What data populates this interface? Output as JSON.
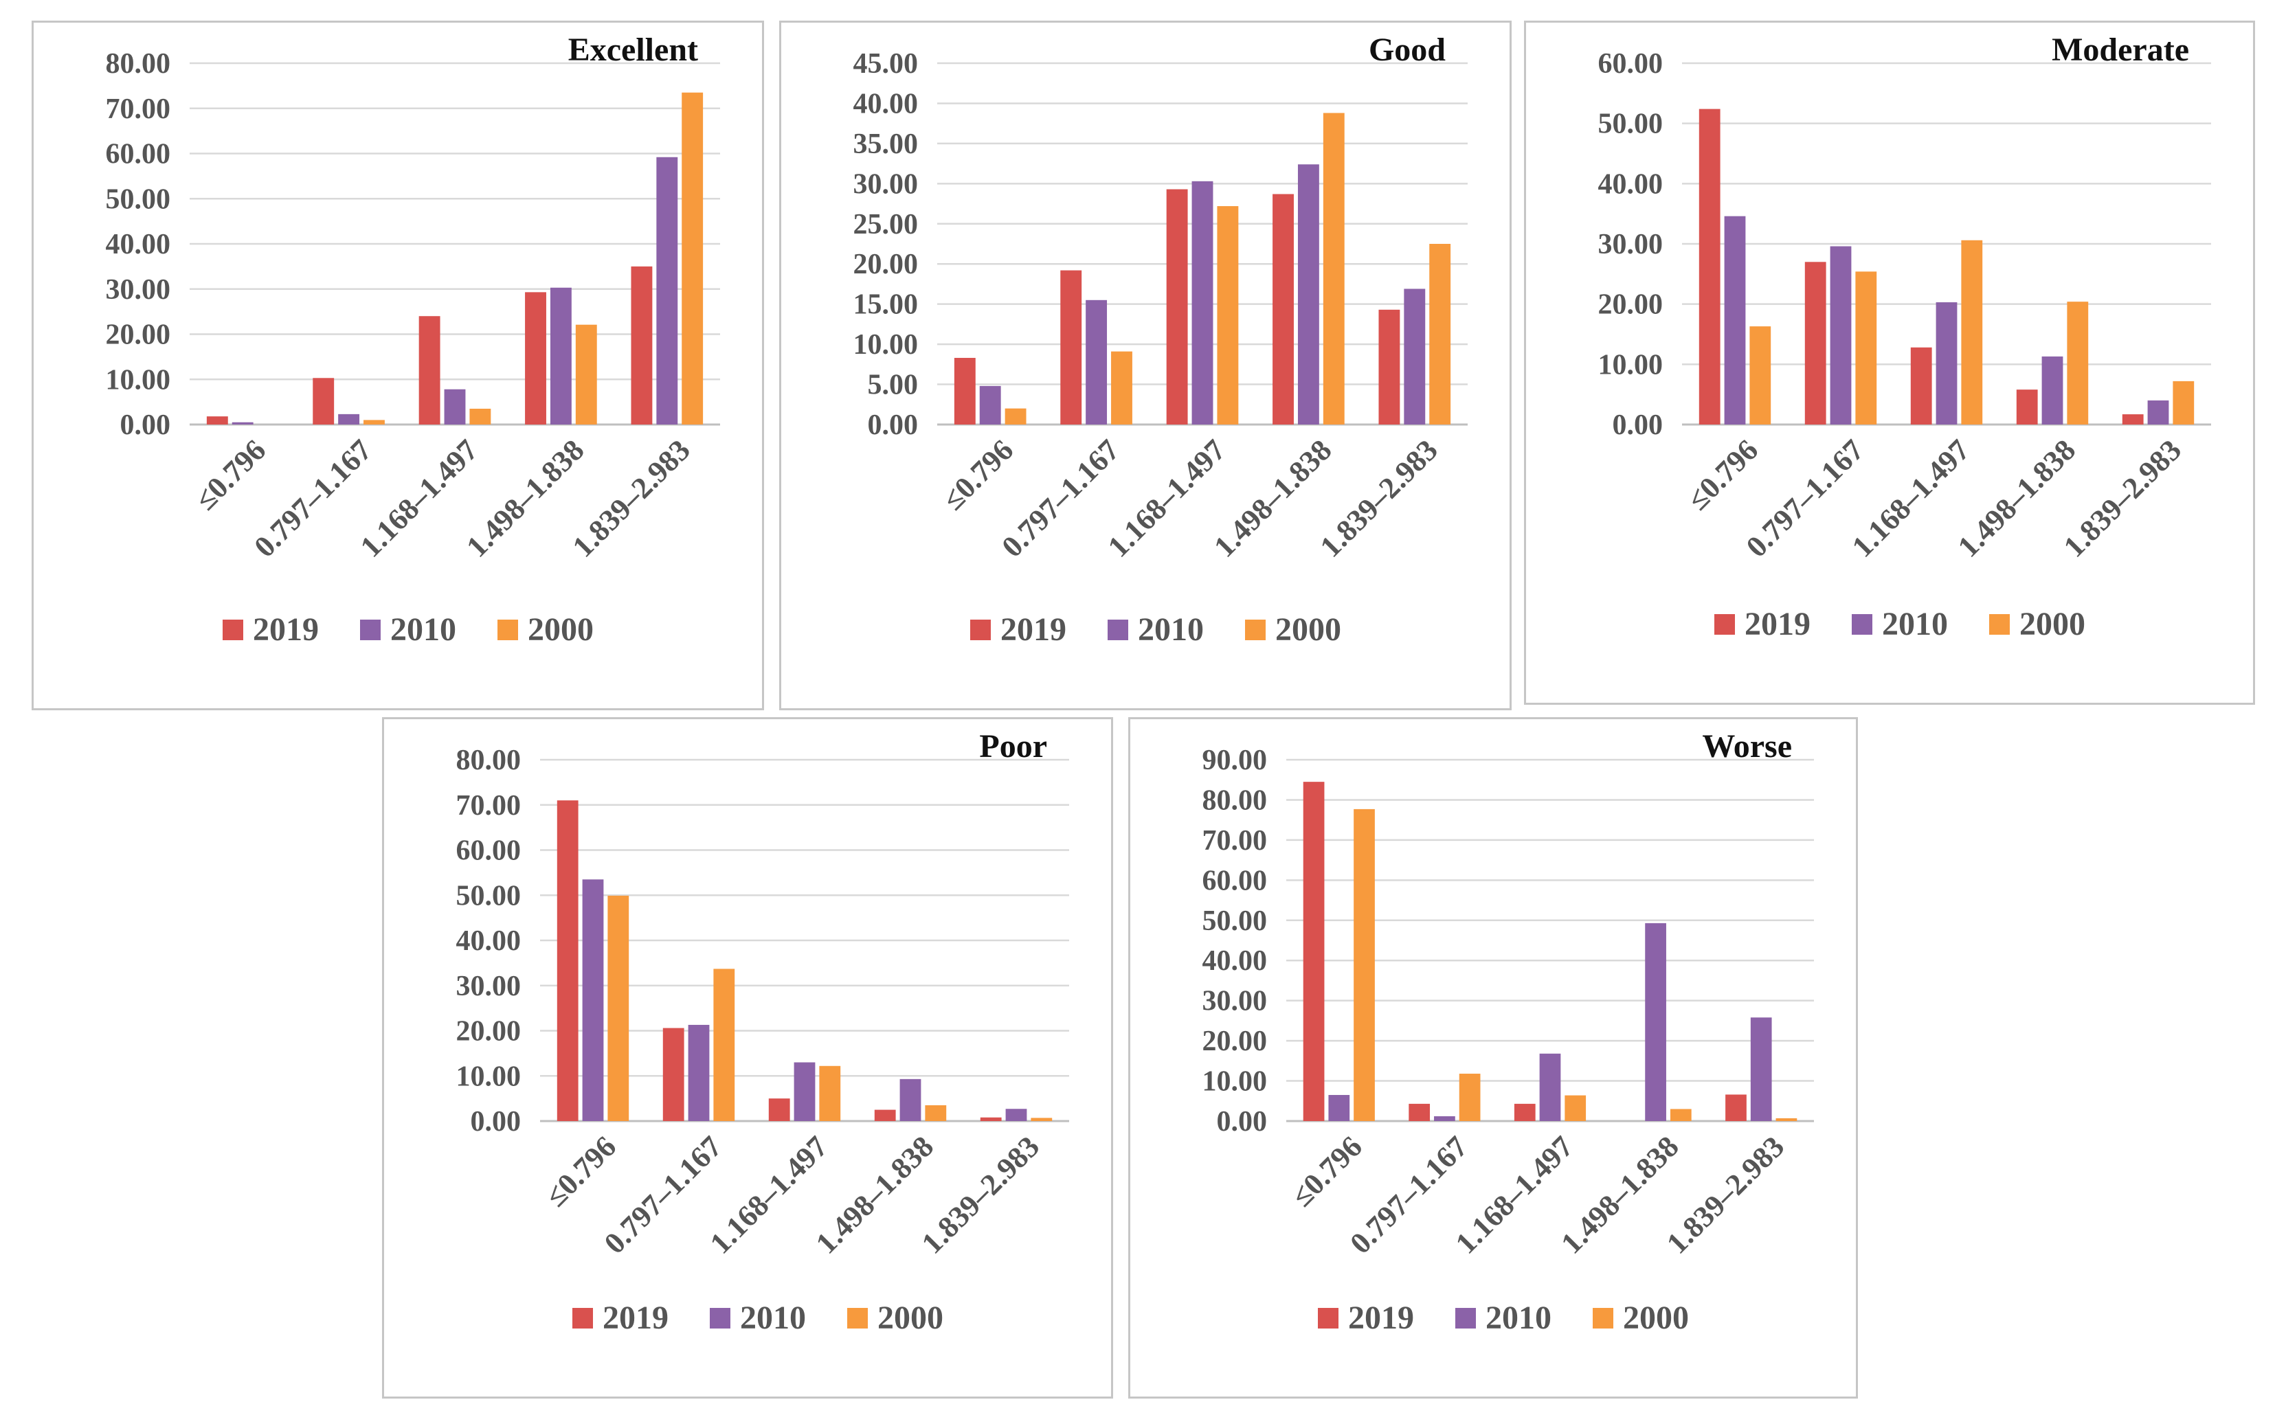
{
  "colors": {
    "s2019": "#D9514E",
    "s2010": "#8B62A8",
    "s2000": "#F79A3D",
    "text": "#555555",
    "title": "#111111",
    "grid": "#D9D9D9",
    "border": "#C6C6C6"
  },
  "categories": [
    "≤0.796",
    "0.797–1.167",
    "1.168–1.497",
    "1.498–1.838",
    "1.839–2.983"
  ],
  "series_names": [
    "2019",
    "2010",
    "2000"
  ],
  "chart_data": [
    {
      "type": "bar",
      "title": "Excellent",
      "categories": [
        "≤0.796",
        "0.797–1.167",
        "1.168–1.497",
        "1.498–1.838",
        "1.839–2.983"
      ],
      "series": [
        {
          "name": "2019",
          "values": [
            1.8,
            10.3,
            24.0,
            29.3,
            35.0
          ]
        },
        {
          "name": "2010",
          "values": [
            0.5,
            2.3,
            7.8,
            30.3,
            59.2
          ]
        },
        {
          "name": "2000",
          "values": [
            0.0,
            1.0,
            3.5,
            22.1,
            73.5
          ]
        }
      ],
      "ylim": [
        0,
        80
      ],
      "yticks": [
        "0.00",
        "10.00",
        "20.00",
        "30.00",
        "40.00",
        "50.00",
        "60.00",
        "70.00",
        "80.00"
      ],
      "grid": true,
      "legend": "bottom"
    },
    {
      "type": "bar",
      "title": "Good",
      "categories": [
        "≤0.796",
        "0.797–1.167",
        "1.168–1.497",
        "1.498–1.838",
        "1.839–2.983"
      ],
      "series": [
        {
          "name": "2019",
          "values": [
            8.3,
            19.2,
            29.3,
            28.7,
            14.3
          ]
        },
        {
          "name": "2010",
          "values": [
            4.8,
            15.5,
            30.3,
            32.4,
            16.9
          ]
        },
        {
          "name": "2000",
          "values": [
            2.0,
            9.1,
            27.2,
            38.8,
            22.5
          ]
        }
      ],
      "ylim": [
        0,
        45
      ],
      "yticks": [
        "0.00",
        "5.00",
        "10.00",
        "15.00",
        "20.00",
        "25.00",
        "30.00",
        "35.00",
        "40.00",
        "45.00"
      ],
      "grid": true,
      "legend": "bottom"
    },
    {
      "type": "bar",
      "title": "Moderate",
      "categories": [
        "≤0.796",
        "0.797–1.167",
        "1.168–1.497",
        "1.498–1.838",
        "1.839–2.983"
      ],
      "series": [
        {
          "name": "2019",
          "values": [
            52.4,
            27.0,
            12.8,
            5.8,
            1.7
          ]
        },
        {
          "name": "2010",
          "values": [
            34.6,
            29.6,
            20.3,
            11.3,
            4.0
          ]
        },
        {
          "name": "2000",
          "values": [
            16.3,
            25.4,
            30.6,
            20.4,
            7.2
          ]
        }
      ],
      "ylim": [
        0,
        60
      ],
      "yticks": [
        "0.00",
        "10.00",
        "20.00",
        "30.00",
        "40.00",
        "50.00",
        "60.00"
      ],
      "grid": true,
      "legend": "bottom"
    },
    {
      "type": "bar",
      "title": "Poor",
      "categories": [
        "≤0.796",
        "0.797–1.167",
        "1.168–1.497",
        "1.498–1.838",
        "1.839–2.983"
      ],
      "series": [
        {
          "name": "2019",
          "values": [
            71.0,
            20.6,
            5.0,
            2.5,
            0.8
          ]
        },
        {
          "name": "2010",
          "values": [
            53.5,
            21.3,
            13.0,
            9.3,
            2.7
          ]
        },
        {
          "name": "2000",
          "values": [
            49.9,
            33.7,
            12.2,
            3.5,
            0.7
          ]
        }
      ],
      "ylim": [
        0,
        80
      ],
      "yticks": [
        "0.00",
        "10.00",
        "20.00",
        "30.00",
        "40.00",
        "50.00",
        "60.00",
        "70.00",
        "80.00"
      ],
      "grid": true,
      "legend": "bottom"
    },
    {
      "type": "bar",
      "title": "Worse",
      "categories": [
        "≤0.796",
        "0.797–1.167",
        "1.168–1.497",
        "1.498–1.838",
        "1.839–2.983"
      ],
      "series": [
        {
          "name": "2019",
          "values": [
            84.5,
            4.3,
            4.3,
            0.0,
            6.6
          ]
        },
        {
          "name": "2010",
          "values": [
            6.5,
            1.2,
            16.8,
            49.3,
            25.8
          ]
        },
        {
          "name": "2000",
          "values": [
            77.7,
            11.8,
            6.4,
            3.0,
            0.7
          ]
        }
      ],
      "ylim": [
        0,
        90
      ],
      "yticks": [
        "0.00",
        "10.00",
        "20.00",
        "30.00",
        "40.00",
        "50.00",
        "60.00",
        "70.00",
        "80.00",
        "90.00"
      ],
      "grid": true,
      "legend": "bottom"
    }
  ]
}
